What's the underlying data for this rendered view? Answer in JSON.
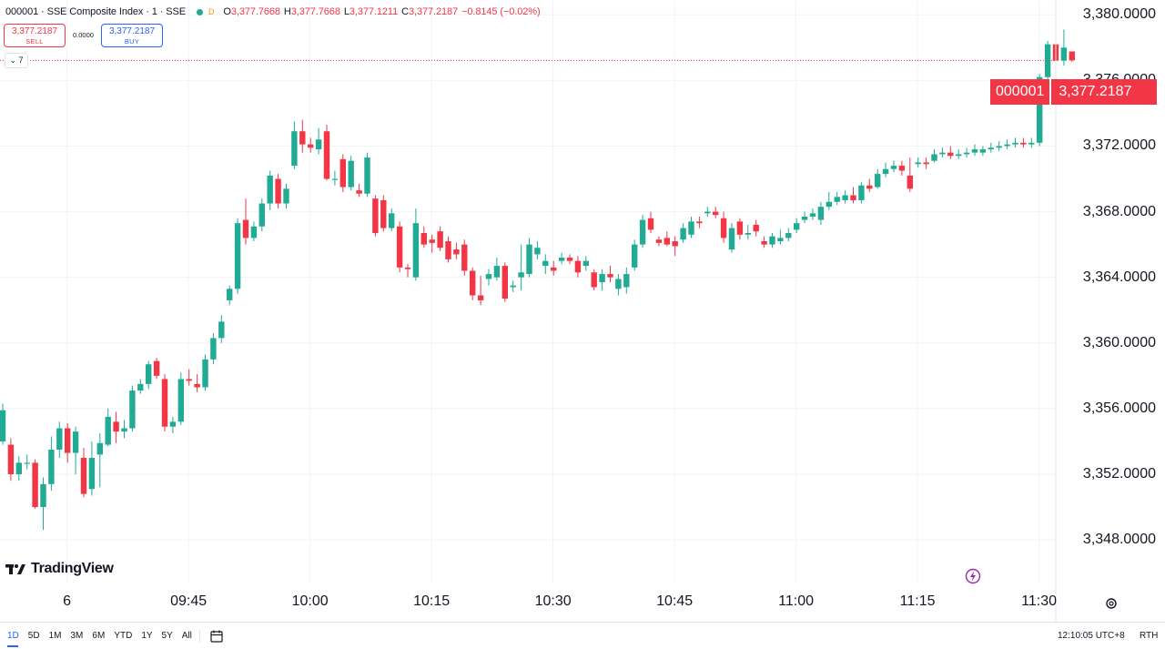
{
  "legend": {
    "symbol": "000001 · SSE Composite Index · 1 · SSE",
    "status_badge": "D",
    "o_label": "O",
    "o": "3,377.7668",
    "h_label": "H",
    "h": "3,377.7668",
    "l_label": "L",
    "l": "3,377.1211",
    "c_label": "C",
    "c": "3,377.2187",
    "change": "−0.8145 (−0.02%)"
  },
  "trade": {
    "sell_price": "3,377.2187",
    "sell_label": "SELL",
    "spread": "0.0000",
    "buy_price": "3,377.2187",
    "buy_label": "BUY"
  },
  "indicators_toggle": "7",
  "brand": "TradingView",
  "price_label": {
    "symbol": "000001",
    "value": "3,377.2187"
  },
  "bottom": {
    "ranges": [
      "1D",
      "5D",
      "1M",
      "3M",
      "6M",
      "YTD",
      "1Y",
      "5Y",
      "All"
    ],
    "active_range": "1D",
    "clock": "12:10:05 UTC+8",
    "rth": "RTH"
  },
  "colors": {
    "up": "#22ab94",
    "down": "#f23645",
    "grid": "#f0f3fa",
    "accent": "#2962ff"
  },
  "icons": [
    "settings-gear-icon",
    "calendar-icon",
    "lightning-icon",
    "tradingview-logo-icon"
  ],
  "chart_data": {
    "type": "candlestick",
    "title": "000001 · SSE Composite Index · 1 · SSE",
    "x_ticks": [
      "6",
      "09:45",
      "10:00",
      "10:15",
      "10:30",
      "10:45",
      "11:00",
      "11:15",
      "11:30"
    ],
    "y_ticks": [
      "3,348.0000",
      "3,352.0000",
      "3,356.0000",
      "3,360.0000",
      "3,364.0000",
      "3,368.0000",
      "3,372.0000",
      "3,376.0000",
      "3,380.0000"
    ],
    "ylim": [
      3345.4,
      3380.9
    ],
    "last_price": 3377.2187,
    "candles": [
      {
        "o": 3354.0,
        "c": 3355.9,
        "h": 3356.3,
        "l": 3353.8
      },
      {
        "o": 3353.8,
        "c": 3352.0,
        "h": 3354.2,
        "l": 3351.6
      },
      {
        "o": 3352.0,
        "c": 3352.7,
        "h": 3353.1,
        "l": 3351.6
      },
      {
        "o": 3352.7,
        "c": 3352.7,
        "h": 3353.2,
        "l": 3352.3
      },
      {
        "o": 3352.7,
        "c": 3350.0,
        "h": 3352.9,
        "l": 3349.9
      },
      {
        "o": 3350.0,
        "c": 3351.4,
        "h": 3351.8,
        "l": 3348.6
      },
      {
        "o": 3351.4,
        "c": 3353.5,
        "h": 3354.3,
        "l": 3351.0
      },
      {
        "o": 3353.5,
        "c": 3354.8,
        "h": 3355.2,
        "l": 3353.0
      },
      {
        "o": 3354.8,
        "c": 3353.3,
        "h": 3355.1,
        "l": 3352.7
      },
      {
        "o": 3353.3,
        "c": 3354.6,
        "h": 3354.9,
        "l": 3352.0
      },
      {
        "o": 3353.0,
        "c": 3350.8,
        "h": 3353.6,
        "l": 3350.6
      },
      {
        "o": 3351.1,
        "c": 3353.0,
        "h": 3354.0,
        "l": 3350.7
      },
      {
        "o": 3353.2,
        "c": 3353.9,
        "h": 3354.5,
        "l": 3351.2
      },
      {
        "o": 3353.8,
        "c": 3355.5,
        "h": 3356.0,
        "l": 3353.7
      },
      {
        "o": 3355.2,
        "c": 3354.6,
        "h": 3355.8,
        "l": 3353.9
      },
      {
        "o": 3354.6,
        "c": 3354.8,
        "h": 3355.3,
        "l": 3354.2
      },
      {
        "o": 3354.8,
        "c": 3357.1,
        "h": 3357.4,
        "l": 3354.6
      },
      {
        "o": 3357.1,
        "c": 3357.5,
        "h": 3357.8,
        "l": 3356.9
      },
      {
        "o": 3357.5,
        "c": 3358.7,
        "h": 3358.9,
        "l": 3357.2
      },
      {
        "o": 3358.9,
        "c": 3358.0,
        "h": 3359.1,
        "l": 3357.8
      },
      {
        "o": 3357.8,
        "c": 3354.9,
        "h": 3358.1,
        "l": 3354.6
      },
      {
        "o": 3354.9,
        "c": 3355.2,
        "h": 3355.5,
        "l": 3354.5
      },
      {
        "o": 3355.2,
        "c": 3357.8,
        "h": 3358.2,
        "l": 3355.0
      },
      {
        "o": 3357.8,
        "c": 3357.7,
        "h": 3358.4,
        "l": 3357.4
      },
      {
        "o": 3357.5,
        "c": 3357.3,
        "h": 3358.1,
        "l": 3357.0
      },
      {
        "o": 3357.3,
        "c": 3359.0,
        "h": 3359.3,
        "l": 3357.1
      },
      {
        "o": 3359.0,
        "c": 3360.3,
        "h": 3360.6,
        "l": 3358.7
      },
      {
        "o": 3360.3,
        "c": 3361.3,
        "h": 3361.7,
        "l": 3360.0
      },
      {
        "o": 3362.6,
        "c": 3363.3,
        "h": 3363.5,
        "l": 3362.3
      },
      {
        "o": 3363.3,
        "c": 3367.3,
        "h": 3367.6,
        "l": 3363.0
      },
      {
        "o": 3367.5,
        "c": 3366.4,
        "h": 3368.8,
        "l": 3366.0
      },
      {
        "o": 3366.4,
        "c": 3367.1,
        "h": 3367.4,
        "l": 3366.2
      },
      {
        "o": 3367.1,
        "c": 3368.5,
        "h": 3368.8,
        "l": 3366.8
      },
      {
        "o": 3368.5,
        "c": 3370.2,
        "h": 3370.5,
        "l": 3368.1
      },
      {
        "o": 3370.0,
        "c": 3368.5,
        "h": 3370.3,
        "l": 3368.2
      },
      {
        "o": 3368.5,
        "c": 3369.4,
        "h": 3369.7,
        "l": 3368.2
      },
      {
        "o": 3370.8,
        "c": 3372.9,
        "h": 3373.5,
        "l": 3370.6
      },
      {
        "o": 3372.9,
        "c": 3372.1,
        "h": 3373.6,
        "l": 3371.6
      },
      {
        "o": 3372.1,
        "c": 3371.9,
        "h": 3372.5,
        "l": 3371.6
      },
      {
        "o": 3371.8,
        "c": 3372.4,
        "h": 3373.1,
        "l": 3371.5
      },
      {
        "o": 3372.9,
        "c": 3370.0,
        "h": 3373.3,
        "l": 3369.9
      },
      {
        "o": 3370.0,
        "c": 3370.0,
        "h": 3370.5,
        "l": 3369.6
      },
      {
        "o": 3371.2,
        "c": 3369.5,
        "h": 3371.5,
        "l": 3369.2
      },
      {
        "o": 3369.5,
        "c": 3371.1,
        "h": 3371.4,
        "l": 3369.3
      },
      {
        "o": 3369.3,
        "c": 3369.1,
        "h": 3369.7,
        "l": 3368.9
      },
      {
        "o": 3369.1,
        "c": 3371.3,
        "h": 3371.6,
        "l": 3368.9
      },
      {
        "o": 3368.8,
        "c": 3366.7,
        "h": 3369.0,
        "l": 3366.5
      },
      {
        "o": 3368.7,
        "c": 3367.0,
        "h": 3369.0,
        "l": 3366.8
      },
      {
        "o": 3367.0,
        "c": 3367.9,
        "h": 3368.2,
        "l": 3366.8
      },
      {
        "o": 3367.1,
        "c": 3364.6,
        "h": 3367.4,
        "l": 3364.3
      },
      {
        "o": 3364.6,
        "c": 3364.5,
        "h": 3364.8,
        "l": 3364.0
      },
      {
        "o": 3364.0,
        "c": 3367.3,
        "h": 3368.2,
        "l": 3363.8
      },
      {
        "o": 3366.7,
        "c": 3366.0,
        "h": 3367.1,
        "l": 3365.8
      },
      {
        "o": 3366.3,
        "c": 3366.1,
        "h": 3366.6,
        "l": 3365.5
      },
      {
        "o": 3366.8,
        "c": 3365.8,
        "h": 3367.1,
        "l": 3365.6
      },
      {
        "o": 3366.2,
        "c": 3365.1,
        "h": 3366.5,
        "l": 3364.9
      },
      {
        "o": 3365.7,
        "c": 3365.4,
        "h": 3366.1,
        "l": 3365.1
      },
      {
        "o": 3366.0,
        "c": 3364.4,
        "h": 3366.3,
        "l": 3364.1
      },
      {
        "o": 3364.4,
        "c": 3362.9,
        "h": 3364.6,
        "l": 3362.6
      },
      {
        "o": 3362.9,
        "c": 3362.6,
        "h": 3364.1,
        "l": 3362.3
      },
      {
        "o": 3363.9,
        "c": 3364.2,
        "h": 3364.5,
        "l": 3363.5
      },
      {
        "o": 3364.0,
        "c": 3364.7,
        "h": 3365.2,
        "l": 3363.8
      },
      {
        "o": 3364.7,
        "c": 3362.7,
        "h": 3364.9,
        "l": 3362.5
      },
      {
        "o": 3363.4,
        "c": 3363.5,
        "h": 3363.8,
        "l": 3363.1
      },
      {
        "o": 3364.0,
        "c": 3364.3,
        "h": 3366.0,
        "l": 3363.2
      },
      {
        "o": 3364.2,
        "c": 3366.0,
        "h": 3366.4,
        "l": 3364.0
      },
      {
        "o": 3365.4,
        "c": 3365.8,
        "h": 3366.2,
        "l": 3365.1
      },
      {
        "o": 3364.7,
        "c": 3365.0,
        "h": 3365.4,
        "l": 3364.2
      },
      {
        "o": 3364.6,
        "c": 3364.4,
        "h": 3365.0,
        "l": 3364.1
      },
      {
        "o": 3365.0,
        "c": 3365.2,
        "h": 3365.5,
        "l": 3364.8
      },
      {
        "o": 3365.2,
        "c": 3365.0,
        "h": 3365.4,
        "l": 3364.8
      },
      {
        "o": 3365.0,
        "c": 3364.3,
        "h": 3365.3,
        "l": 3364.0
      },
      {
        "o": 3364.7,
        "c": 3365.0,
        "h": 3365.3,
        "l": 3364.4
      },
      {
        "o": 3364.3,
        "c": 3363.4,
        "h": 3364.5,
        "l": 3363.2
      },
      {
        "o": 3363.7,
        "c": 3364.2,
        "h": 3364.5,
        "l": 3363.2
      },
      {
        "o": 3364.2,
        "c": 3364.0,
        "h": 3364.7,
        "l": 3363.7
      },
      {
        "o": 3363.3,
        "c": 3363.9,
        "h": 3364.2,
        "l": 3362.9
      },
      {
        "o": 3363.4,
        "c": 3364.2,
        "h": 3364.6,
        "l": 3363.0
      },
      {
        "o": 3364.6,
        "c": 3366.0,
        "h": 3366.3,
        "l": 3364.4
      },
      {
        "o": 3366.0,
        "c": 3367.5,
        "h": 3367.8,
        "l": 3365.8
      },
      {
        "o": 3367.6,
        "c": 3366.9,
        "h": 3368.0,
        "l": 3366.7
      },
      {
        "o": 3366.3,
        "c": 3366.1,
        "h": 3366.5,
        "l": 3365.9
      },
      {
        "o": 3366.4,
        "c": 3366.0,
        "h": 3366.8,
        "l": 3365.9
      },
      {
        "o": 3366.2,
        "c": 3365.9,
        "h": 3366.5,
        "l": 3365.3
      },
      {
        "o": 3366.3,
        "c": 3367.0,
        "h": 3367.3,
        "l": 3366.1
      },
      {
        "o": 3366.6,
        "c": 3367.4,
        "h": 3367.7,
        "l": 3366.4
      },
      {
        "o": 3367.4,
        "c": 3367.3,
        "h": 3367.7,
        "l": 3367.0
      },
      {
        "o": 3367.9,
        "c": 3368.0,
        "h": 3368.3,
        "l": 3367.7
      },
      {
        "o": 3368.0,
        "c": 3367.8,
        "h": 3368.3,
        "l": 3367.6
      },
      {
        "o": 3367.6,
        "c": 3366.4,
        "h": 3368.0,
        "l": 3366.1
      },
      {
        "o": 3365.7,
        "c": 3367.0,
        "h": 3367.3,
        "l": 3365.5
      },
      {
        "o": 3367.4,
        "c": 3366.6,
        "h": 3367.6,
        "l": 3366.3
      },
      {
        "o": 3366.6,
        "c": 3366.7,
        "h": 3367.2,
        "l": 3366.3
      },
      {
        "o": 3367.2,
        "c": 3366.8,
        "h": 3367.5,
        "l": 3366.5
      },
      {
        "o": 3366.2,
        "c": 3366.0,
        "h": 3366.5,
        "l": 3365.8
      },
      {
        "o": 3366.0,
        "c": 3366.5,
        "h": 3366.7,
        "l": 3365.8
      },
      {
        "o": 3366.2,
        "c": 3366.4,
        "h": 3366.9,
        "l": 3366.0
      },
      {
        "o": 3366.4,
        "c": 3366.7,
        "h": 3367.0,
        "l": 3366.2
      },
      {
        "o": 3366.9,
        "c": 3367.3,
        "h": 3367.6,
        "l": 3366.7
      },
      {
        "o": 3367.5,
        "c": 3367.7,
        "h": 3368.0,
        "l": 3367.3
      },
      {
        "o": 3367.7,
        "c": 3367.9,
        "h": 3368.2,
        "l": 3367.5
      },
      {
        "o": 3367.5,
        "c": 3368.3,
        "h": 3368.6,
        "l": 3367.2
      },
      {
        "o": 3368.3,
        "c": 3368.6,
        "h": 3369.2,
        "l": 3368.1
      },
      {
        "o": 3368.6,
        "c": 3368.9,
        "h": 3369.2,
        "l": 3368.4
      },
      {
        "o": 3368.7,
        "c": 3369.0,
        "h": 3369.3,
        "l": 3368.5
      },
      {
        "o": 3369.0,
        "c": 3368.7,
        "h": 3369.5,
        "l": 3368.5
      },
      {
        "o": 3368.7,
        "c": 3369.6,
        "h": 3369.8,
        "l": 3368.5
      },
      {
        "o": 3369.6,
        "c": 3369.4,
        "h": 3370.0,
        "l": 3369.2
      },
      {
        "o": 3369.5,
        "c": 3370.3,
        "h": 3370.6,
        "l": 3369.4
      },
      {
        "o": 3370.3,
        "c": 3370.6,
        "h": 3371.0,
        "l": 3370.1
      },
      {
        "o": 3370.6,
        "c": 3370.8,
        "h": 3371.1,
        "l": 3370.4
      },
      {
        "o": 3370.8,
        "c": 3370.5,
        "h": 3371.1,
        "l": 3370.2
      },
      {
        "o": 3370.2,
        "c": 3369.4,
        "h": 3371.3,
        "l": 3369.2
      },
      {
        "o": 3370.9,
        "c": 3371.0,
        "h": 3371.3,
        "l": 3370.7
      },
      {
        "o": 3371.0,
        "c": 3370.9,
        "h": 3371.3,
        "l": 3370.6
      },
      {
        "o": 3371.1,
        "c": 3371.5,
        "h": 3371.8,
        "l": 3371.0
      },
      {
        "o": 3371.5,
        "c": 3371.6,
        "h": 3371.9,
        "l": 3371.3
      },
      {
        "o": 3371.6,
        "c": 3371.4,
        "h": 3372.0,
        "l": 3371.2
      },
      {
        "o": 3371.4,
        "c": 3371.5,
        "h": 3371.8,
        "l": 3371.2
      },
      {
        "o": 3371.5,
        "c": 3371.6,
        "h": 3371.9,
        "l": 3371.3
      },
      {
        "o": 3371.6,
        "c": 3371.8,
        "h": 3372.1,
        "l": 3371.4
      },
      {
        "o": 3371.6,
        "c": 3371.8,
        "h": 3372.0,
        "l": 3371.4
      },
      {
        "o": 3371.8,
        "c": 3371.9,
        "h": 3372.2,
        "l": 3371.6
      },
      {
        "o": 3371.9,
        "c": 3372.0,
        "h": 3372.3,
        "l": 3371.7
      },
      {
        "o": 3372.0,
        "c": 3372.1,
        "h": 3372.4,
        "l": 3371.8
      },
      {
        "o": 3372.1,
        "c": 3372.2,
        "h": 3372.5,
        "l": 3371.9
      },
      {
        "o": 3372.2,
        "c": 3372.1,
        "h": 3372.5,
        "l": 3371.9
      },
      {
        "o": 3372.1,
        "c": 3372.2,
        "h": 3372.5,
        "l": 3371.9
      },
      {
        "o": 3372.2,
        "c": 3376.2,
        "h": 3376.4,
        "l": 3372.0
      },
      {
        "o": 3376.2,
        "c": 3378.2,
        "h": 3378.4,
        "l": 3376.0
      },
      {
        "o": 3378.2,
        "c": 3377.2,
        "h": 3378.5,
        "l": 3376.9
      },
      {
        "o": 3377.2,
        "c": 3378.0,
        "h": 3379.1,
        "l": 3376.9
      },
      {
        "o": 3377.7668,
        "c": 3377.2187,
        "h": 3377.7668,
        "l": 3377.1211
      }
    ]
  }
}
